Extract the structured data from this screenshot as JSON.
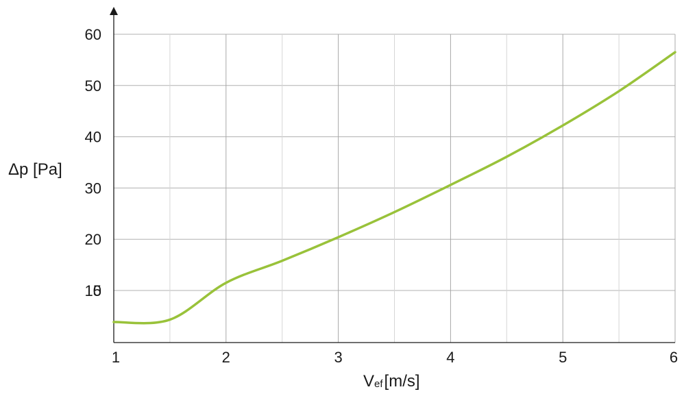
{
  "chart_data": {
    "type": "line",
    "xlabel": {
      "main": "V",
      "sub": "ef",
      "unit": "[m/s]"
    },
    "ylabel": "Δp [Pa]",
    "xlim": [
      1,
      6
    ],
    "ylim": [
      5,
      60
    ],
    "x_ticks": [
      1,
      2,
      3,
      4,
      5,
      6
    ],
    "x_tick_labels": [
      "1",
      "2",
      "3",
      "4",
      "5",
      "6"
    ],
    "y_ticks": [
      5,
      10,
      20,
      30,
      40,
      50,
      60
    ],
    "y_tick_labels": [
      "5",
      "10",
      "20",
      "30",
      "40",
      "50",
      "60"
    ],
    "x_minor_gridlines": [
      1.5,
      2.5,
      3.5,
      4.5,
      5.5
    ],
    "grid": true,
    "series": [
      {
        "color": "#99c23a",
        "x": [
          1,
          1.5,
          2,
          2.5,
          3,
          3.5,
          4,
          4.5,
          5,
          5.5,
          6
        ],
        "y": [
          5.0,
          7.8,
          11.5,
          15.8,
          20.4,
          25.3,
          30.6,
          36.1,
          42.2,
          48.9,
          56.5
        ]
      }
    ]
  }
}
